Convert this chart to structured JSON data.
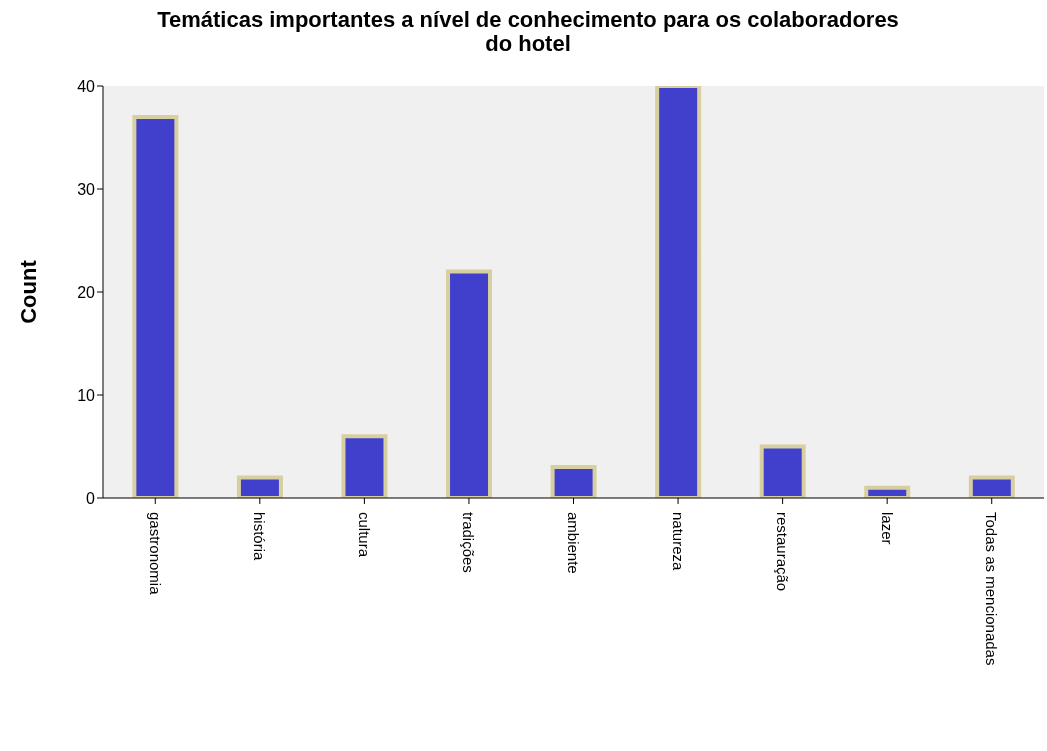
{
  "chart_data": {
    "type": "bar",
    "title": "Temáticas importantes a nível de conhecimento para os colaboradores do hotel",
    "ylabel": "Count",
    "categories": [
      "gastronomia",
      "história",
      "cultura",
      "tradições",
      "ambiente",
      "natureza",
      "restauração",
      "lazer",
      "Todas as mencionadas"
    ],
    "values": [
      37,
      2,
      6,
      22,
      3,
      40,
      5,
      1,
      2
    ],
    "color": "#4040cc",
    "ylim": [
      0,
      40
    ],
    "yticks": [
      0,
      10,
      20,
      30,
      40
    ],
    "grid": false,
    "legend": false
  }
}
